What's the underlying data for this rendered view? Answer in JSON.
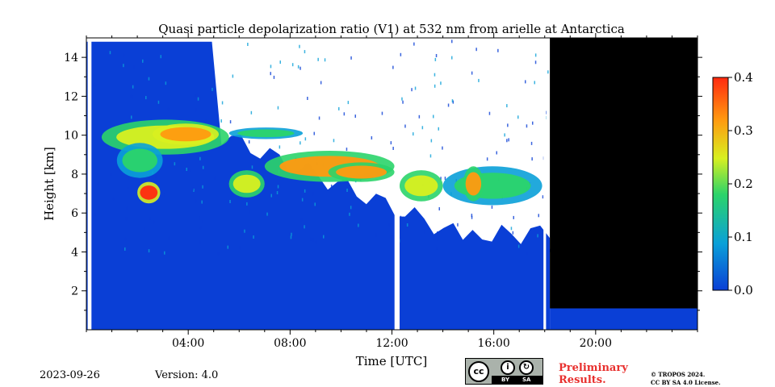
{
  "chart_data": {
    "type": "heatmap",
    "title": "Quasi particle depolarization ratio (V1) at 532 nm from arielle at Antarctica",
    "xlabel": "Time [UTC]",
    "ylabel": "Height [km]",
    "xlim_hours": [
      0,
      24
    ],
    "ylim_km": [
      0,
      15
    ],
    "x_ticks": [
      {
        "hour": 4,
        "label": "04:00"
      },
      {
        "hour": 8,
        "label": "08:00"
      },
      {
        "hour": 12,
        "label": "12:00"
      },
      {
        "hour": 16,
        "label": "16:00"
      },
      {
        "hour": 20,
        "label": "20:00"
      }
    ],
    "y_ticks": [
      {
        "km": 2,
        "label": "2"
      },
      {
        "km": 4,
        "label": "4"
      },
      {
        "km": 6,
        "label": "6"
      },
      {
        "km": 8,
        "label": "8"
      },
      {
        "km": 10,
        "label": "10"
      },
      {
        "km": 12,
        "label": "12"
      },
      {
        "km": 14,
        "label": "14"
      }
    ],
    "colorbar": {
      "range": [
        0.0,
        0.4
      ],
      "ticks": [
        {
          "value": 0.0,
          "label": "0.0"
        },
        {
          "value": 0.1,
          "label": "0.1"
        },
        {
          "value": 0.2,
          "label": "0.2"
        },
        {
          "value": 0.3,
          "label": "0.3"
        },
        {
          "value": 0.4,
          "label": "0.4"
        }
      ],
      "colors": [
        "#0a3fd6",
        "#0aa0d8",
        "#2bd46a",
        "#d8f020",
        "#ff9a10",
        "#ff2a10"
      ]
    },
    "background_value": 0.0,
    "no_data_after_hour": 18.2,
    "no_data_above_km": 1.1,
    "data_gaps_hours": [
      [
        0.05,
        0.2
      ],
      [
        12.1,
        12.3
      ],
      [
        17.95,
        18.05
      ]
    ],
    "cloud_layers": [
      {
        "x0": 0.6,
        "x1": 5.6,
        "ytop": 10.8,
        "ybot": 9.0,
        "value": 0.22
      },
      {
        "x0": 2.6,
        "x1": 5.2,
        "ytop": 10.6,
        "ybot": 9.5,
        "value": 0.35
      },
      {
        "x0": 1.2,
        "x1": 3.0,
        "ytop": 9.6,
        "ybot": 7.8,
        "value": 0.15
      },
      {
        "x0": 2.0,
        "x1": 2.9,
        "ytop": 7.6,
        "ybot": 6.5,
        "value": 0.38
      },
      {
        "x0": 5.6,
        "x1": 8.5,
        "ytop": 10.4,
        "ybot": 9.8,
        "value": 0.18
      },
      {
        "x0": 5.6,
        "x1": 7.0,
        "ytop": 8.2,
        "ybot": 6.8,
        "value": 0.25
      },
      {
        "x0": 7.0,
        "x1": 12.1,
        "ytop": 9.2,
        "ybot": 7.6,
        "value": 0.28
      },
      {
        "x0": 9.5,
        "x1": 12.1,
        "ytop": 8.6,
        "ybot": 7.6,
        "value": 0.33
      },
      {
        "x0": 12.3,
        "x1": 14.0,
        "ytop": 8.2,
        "ybot": 6.6,
        "value": 0.2
      },
      {
        "x0": 14.0,
        "x1": 17.9,
        "ytop": 8.4,
        "ybot": 6.4,
        "value": 0.18
      },
      {
        "x0": 14.8,
        "x1": 15.6,
        "ytop": 8.4,
        "ybot": 6.6,
        "value": 0.28
      }
    ]
  },
  "footer": {
    "date": "2023-09-26",
    "version": "Version: 4.0",
    "preliminary_line1": "Preliminary",
    "preliminary_line2": "Results.",
    "license_line1": "© TROPOS 2024.",
    "license_line2": "CC BY SA 4.0 License."
  },
  "cc_badge": {
    "cc_text": "cc",
    "by_text": "BY",
    "sa_text": "SA"
  }
}
